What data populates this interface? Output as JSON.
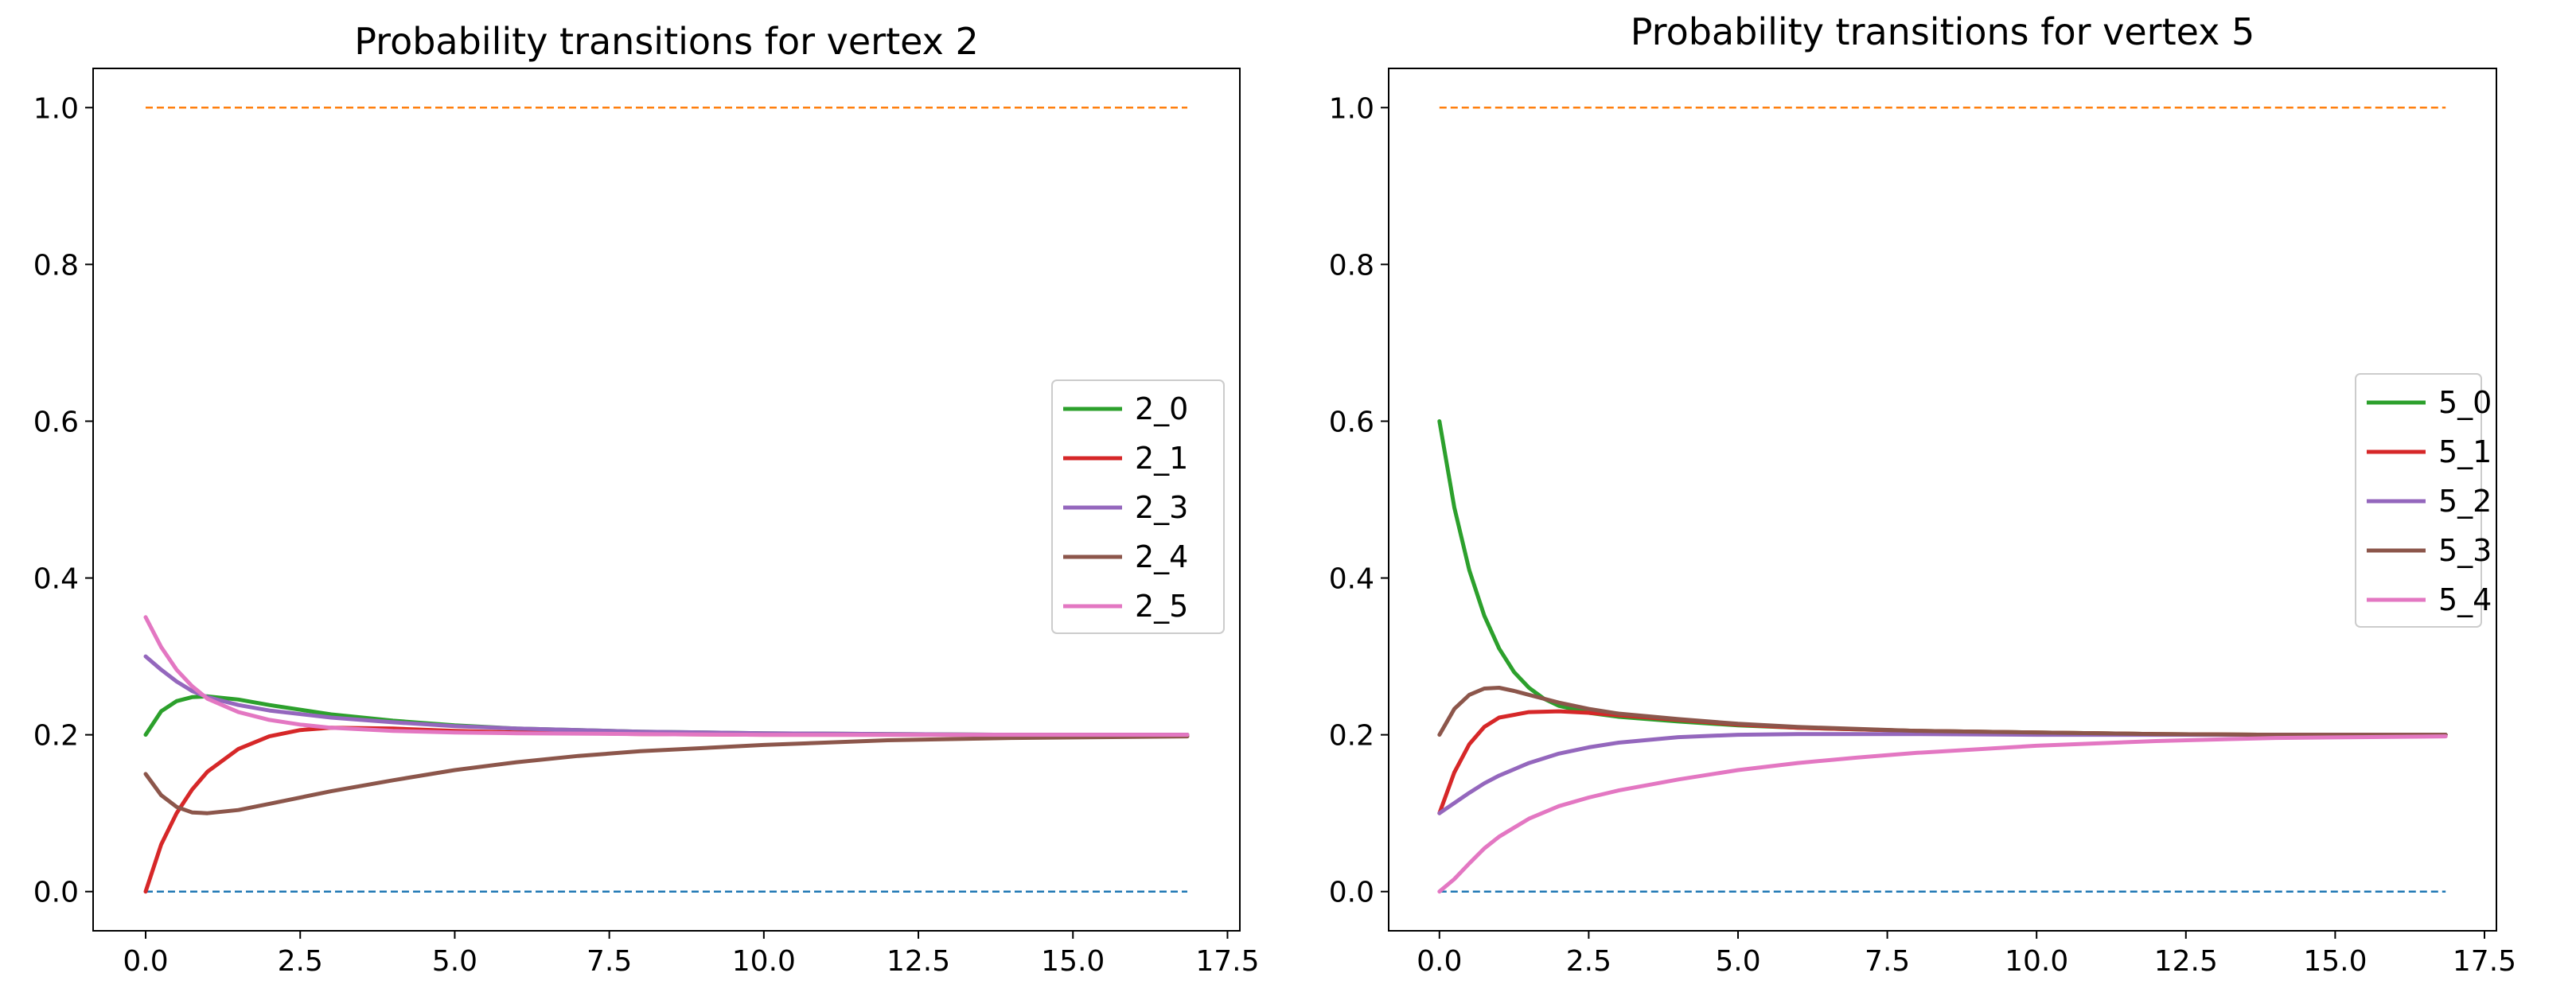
{
  "chart_data": [
    {
      "type": "line",
      "title": "Probability transitions for vertex 2",
      "xlabel": "",
      "ylabel": "",
      "xlim": [
        -0.85,
        17.7
      ],
      "ylim": [
        -0.05,
        1.05
      ],
      "xticks": [
        0.0,
        2.5,
        5.0,
        7.5,
        10.0,
        12.5,
        15.0,
        17.5
      ],
      "xtick_labels": [
        "0.0",
        "2.5",
        "5.0",
        "7.5",
        "10.0",
        "12.5",
        "15.0",
        "17.5"
      ],
      "yticks": [
        0.0,
        0.2,
        0.4,
        0.6,
        0.8,
        1.0
      ],
      "ytick_labels": [
        "0.0",
        "0.2",
        "0.4",
        "0.6",
        "0.8",
        "1.0"
      ],
      "grid": false,
      "legend_position": "center-right",
      "series": [
        {
          "color": "#1f77b4",
          "style": "dashed",
          "in_legend": false,
          "x": [
            0.0,
            16.85
          ],
          "y": [
            0.0,
            0.0
          ]
        },
        {
          "color": "#ff7f0e",
          "style": "dashed",
          "in_legend": false,
          "x": [
            0.0,
            16.85
          ],
          "y": [
            1.0,
            1.0
          ]
        },
        {
          "name": "2_0",
          "color": "#2ca02c",
          "style": "solid",
          "in_legend": true,
          "x": [
            0,
            0.25,
            0.5,
            0.75,
            1.0,
            1.5,
            2.0,
            3.0,
            4.0,
            5.0,
            6.0,
            8.0,
            10.0,
            12.0,
            14.0,
            16.85
          ],
          "y": [
            0.2,
            0.23,
            0.243,
            0.248,
            0.249,
            0.245,
            0.238,
            0.226,
            0.218,
            0.212,
            0.208,
            0.204,
            0.202,
            0.201,
            0.2,
            0.2
          ]
        },
        {
          "name": "2_1",
          "color": "#d62728",
          "style": "solid",
          "in_legend": true,
          "x": [
            0,
            0.25,
            0.5,
            0.75,
            1.0,
            1.5,
            2.0,
            2.5,
            3.0,
            4.0,
            5.0,
            6.0,
            8.0,
            10.0,
            12.0,
            14.0,
            16.85
          ],
          "y": [
            0.0,
            0.06,
            0.1,
            0.13,
            0.153,
            0.182,
            0.198,
            0.206,
            0.209,
            0.208,
            0.205,
            0.203,
            0.201,
            0.2,
            0.2,
            0.2,
            0.2
          ]
        },
        {
          "name": "2_3",
          "color": "#9467bd",
          "style": "solid",
          "in_legend": true,
          "x": [
            0,
            0.25,
            0.5,
            0.75,
            1.0,
            1.5,
            2.0,
            3.0,
            4.0,
            5.0,
            6.0,
            8.0,
            10.0,
            12.0,
            14.0,
            16.85
          ],
          "y": [
            0.3,
            0.283,
            0.268,
            0.256,
            0.248,
            0.238,
            0.231,
            0.222,
            0.216,
            0.211,
            0.208,
            0.204,
            0.202,
            0.201,
            0.2,
            0.2
          ]
        },
        {
          "name": "2_4",
          "color": "#8c564b",
          "style": "solid",
          "in_legend": true,
          "x": [
            0,
            0.25,
            0.5,
            0.75,
            1.0,
            1.5,
            2.0,
            3.0,
            4.0,
            5.0,
            6.0,
            7.0,
            8.0,
            10.0,
            12.0,
            14.0,
            16.85
          ],
          "y": [
            0.15,
            0.123,
            0.108,
            0.101,
            0.1,
            0.104,
            0.112,
            0.128,
            0.142,
            0.155,
            0.165,
            0.173,
            0.179,
            0.187,
            0.193,
            0.196,
            0.198
          ]
        },
        {
          "name": "2_5",
          "color": "#e377c2",
          "style": "solid",
          "in_legend": true,
          "x": [
            0,
            0.25,
            0.5,
            0.75,
            1.0,
            1.5,
            2.0,
            2.5,
            3.0,
            4.0,
            5.0,
            6.0,
            8.0,
            10.0,
            12.0,
            14.0,
            16.85
          ],
          "y": [
            0.35,
            0.312,
            0.283,
            0.262,
            0.246,
            0.229,
            0.219,
            0.213,
            0.209,
            0.205,
            0.203,
            0.202,
            0.201,
            0.2,
            0.2,
            0.2,
            0.2
          ]
        }
      ]
    },
    {
      "type": "line",
      "title": "Probability transitions for vertex 5",
      "xlabel": "",
      "ylabel": "",
      "xlim": [
        -0.85,
        17.7
      ],
      "ylim": [
        -0.05,
        1.05
      ],
      "xticks": [
        0.0,
        2.5,
        5.0,
        7.5,
        10.0,
        12.5,
        15.0,
        17.5
      ],
      "xtick_labels": [
        "0.0",
        "2.5",
        "5.0",
        "7.5",
        "10.0",
        "12.5",
        "15.0",
        "17.5"
      ],
      "yticks": [
        0.0,
        0.2,
        0.4,
        0.6,
        0.8,
        1.0
      ],
      "ytick_labels": [
        "0.0",
        "0.2",
        "0.4",
        "0.6",
        "0.8",
        "1.0"
      ],
      "grid": false,
      "legend_position": "center-right",
      "series": [
        {
          "color": "#1f77b4",
          "style": "dashed",
          "in_legend": false,
          "x": [
            0.0,
            16.85
          ],
          "y": [
            0.0,
            0.0
          ]
        },
        {
          "color": "#ff7f0e",
          "style": "dashed",
          "in_legend": false,
          "x": [
            0.0,
            16.85
          ],
          "y": [
            1.0,
            1.0
          ]
        },
        {
          "name": "5_0",
          "color": "#2ca02c",
          "style": "solid",
          "in_legend": true,
          "x": [
            0,
            0.25,
            0.5,
            0.75,
            1.0,
            1.25,
            1.5,
            1.75,
            2.0,
            2.5,
            3.0,
            4.0,
            5.0,
            6.0,
            8.0,
            10.0,
            12.0,
            14.0,
            16.85
          ],
          "y": [
            0.6,
            0.49,
            0.41,
            0.352,
            0.31,
            0.28,
            0.26,
            0.246,
            0.237,
            0.228,
            0.223,
            0.217,
            0.212,
            0.209,
            0.205,
            0.203,
            0.201,
            0.2,
            0.2
          ]
        },
        {
          "name": "5_1",
          "color": "#d62728",
          "style": "solid",
          "in_legend": true,
          "x": [
            0,
            0.25,
            0.5,
            0.75,
            1.0,
            1.5,
            2.0,
            2.5,
            3.0,
            4.0,
            5.0,
            6.0,
            8.0,
            10.0,
            12.0,
            14.0,
            16.85
          ],
          "y": [
            0.1,
            0.152,
            0.188,
            0.21,
            0.222,
            0.229,
            0.23,
            0.228,
            0.225,
            0.219,
            0.213,
            0.209,
            0.205,
            0.203,
            0.201,
            0.2,
            0.2
          ]
        },
        {
          "name": "5_2",
          "color": "#9467bd",
          "style": "solid",
          "in_legend": true,
          "x": [
            0,
            0.25,
            0.5,
            0.75,
            1.0,
            1.5,
            2.0,
            2.5,
            3.0,
            4.0,
            5.0,
            6.0,
            8.0,
            10.0,
            12.0,
            14.0,
            16.85
          ],
          "y": [
            0.1,
            0.113,
            0.126,
            0.138,
            0.148,
            0.164,
            0.176,
            0.184,
            0.19,
            0.197,
            0.2,
            0.201,
            0.201,
            0.2,
            0.2,
            0.2,
            0.2
          ]
        },
        {
          "name": "5_3",
          "color": "#8c564b",
          "style": "solid",
          "in_legend": true,
          "x": [
            0,
            0.25,
            0.5,
            0.75,
            1.0,
            1.25,
            1.5,
            2.0,
            2.5,
            3.0,
            4.0,
            5.0,
            6.0,
            8.0,
            10.0,
            12.0,
            14.0,
            16.85
          ],
          "y": [
            0.2,
            0.233,
            0.251,
            0.259,
            0.26,
            0.256,
            0.251,
            0.241,
            0.233,
            0.227,
            0.22,
            0.214,
            0.21,
            0.205,
            0.203,
            0.201,
            0.2,
            0.2
          ]
        },
        {
          "name": "5_4",
          "color": "#e377c2",
          "style": "solid",
          "in_legend": true,
          "x": [
            0,
            0.25,
            0.5,
            0.75,
            1.0,
            1.5,
            2.0,
            2.5,
            3.0,
            4.0,
            5.0,
            6.0,
            7.0,
            8.0,
            10.0,
            12.0,
            14.0,
            16.85
          ],
          "y": [
            0.0,
            0.016,
            0.036,
            0.055,
            0.07,
            0.093,
            0.109,
            0.12,
            0.129,
            0.143,
            0.155,
            0.164,
            0.171,
            0.177,
            0.186,
            0.192,
            0.196,
            0.198
          ]
        }
      ]
    }
  ]
}
